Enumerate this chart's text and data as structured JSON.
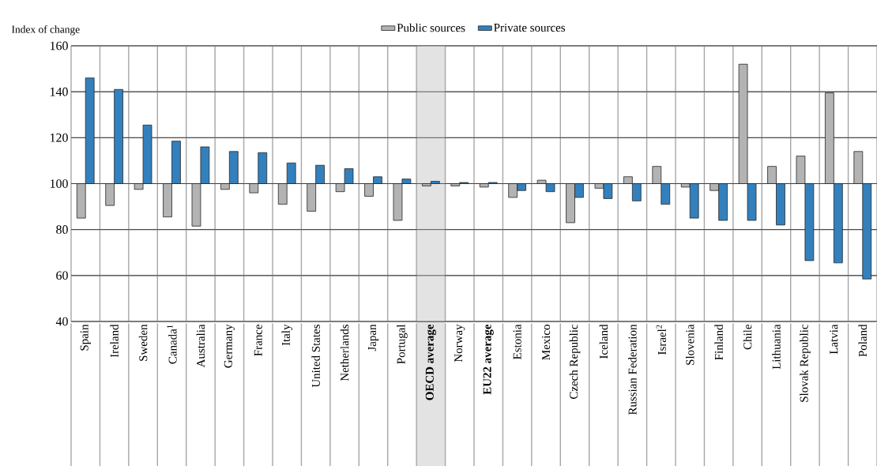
{
  "chart_data": {
    "type": "bar",
    "ylabel": "Index of change",
    "categories": [
      "Spain",
      "Ireland",
      "Sweden",
      "Canada$^{1}$",
      "Australia",
      "Germany",
      "France",
      "Italy",
      "United States",
      "Netherlands",
      "Japan",
      "Portugal",
      "**OECD average**",
      "Norway",
      "**EU22 average**",
      "Estonia",
      "Mexico",
      "Czech Republic",
      "Iceland",
      "Russian Federation",
      "Israel$^{2}$",
      "Slovenia",
      "Finland",
      "Chile",
      "Lithuania",
      "Slovak Republic",
      "Latvia",
      "Poland"
    ],
    "series": [
      {
        "name": "Public sources",
        "color": "#b3b3b3",
        "base": [
          100,
          100,
          100,
          100,
          100,
          100,
          100,
          100,
          100,
          100,
          100,
          100,
          100,
          100,
          100,
          100,
          100,
          100,
          100,
          100,
          100,
          100,
          100,
          100,
          100,
          100,
          100,
          100
        ],
        "values": [
          -15,
          -9.5,
          -2.5,
          -14.5,
          -18.5,
          -2.5,
          -4,
          -9,
          -12,
          -3.5,
          -5.5,
          -16,
          -1,
          -1,
          -1.5,
          -6,
          1.5,
          -17,
          -2,
          3,
          7.5,
          -1.5,
          -3,
          52,
          7.5,
          12,
          39.5,
          14
        ]
      },
      {
        "name": "Private sources",
        "color": "#3380bd",
        "base": [
          100,
          100,
          100,
          100,
          100,
          100,
          100,
          100,
          100,
          100,
          100,
          100,
          100,
          100,
          100,
          100,
          100,
          100,
          100,
          100,
          100,
          100,
          100,
          100,
          100,
          100,
          100,
          100
        ],
        "values": [
          46,
          41,
          25.5,
          18.5,
          16,
          14,
          13.5,
          9,
          8,
          6.5,
          3,
          2,
          1,
          0.5,
          0.5,
          -3,
          -3.5,
          -6,
          -6.5,
          -7.5,
          -9,
          -15,
          -16,
          -16,
          -18,
          -33.5,
          -34.5,
          -41.5
        ]
      }
    ],
    "ylim": [
      40,
      160
    ],
    "yticks": [
      40,
      60,
      80,
      100,
      120,
      140,
      160
    ],
    "grid": "y",
    "legend": "top",
    "bands": [
      {
        "axis": "x",
        "from": "**OECD average**",
        "to": "**OECD average**",
        "color": "#e3e3e3"
      }
    ]
  }
}
